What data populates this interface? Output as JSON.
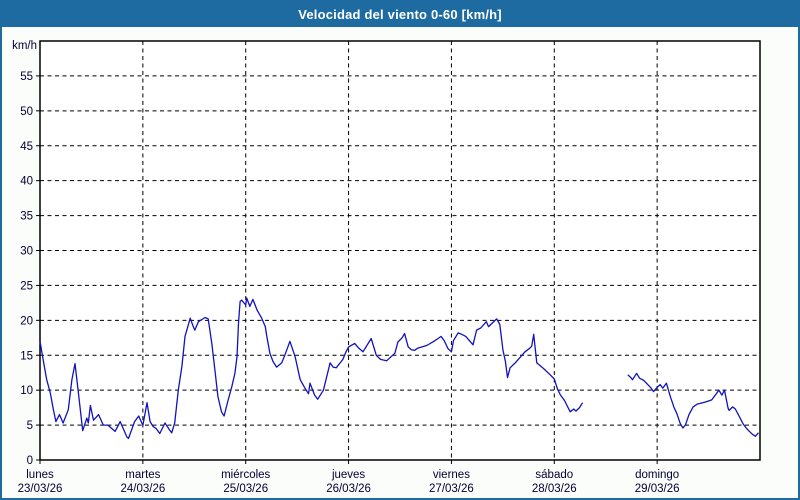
{
  "window": {
    "title": "Velocidad del viento 0-60 [km/h]"
  },
  "colors": {
    "titlebar_bg": "#1E6BA1",
    "frame_border": "#1E6BA1",
    "page_bg": "#FBFDFA",
    "plot_bg": "#FFFFFF",
    "plot_border": "#000000",
    "grid": "#000000",
    "line": "#1212BE",
    "axis_text": "#000033",
    "title_text": "#FFFFFF"
  },
  "chart_data": {
    "type": "line",
    "title": "Velocidad del viento 0-60 [km/h]",
    "ylabel": "km/h",
    "ylim": [
      0,
      60
    ],
    "ytick_step": 5,
    "ymax_labeled": 55,
    "grid": "dashed",
    "legend_position": "none",
    "x_axis": {
      "unit": "days",
      "range_days": 7,
      "days": [
        {
          "weekday": "lunes",
          "date": "23/03/26"
        },
        {
          "weekday": "martes",
          "date": "24/03/26"
        },
        {
          "weekday": "miércoles",
          "date": "25/03/26"
        },
        {
          "weekday": "jueves",
          "date": "26/03/26"
        },
        {
          "weekday": "viernes",
          "date": "27/03/26"
        },
        {
          "weekday": "sábado",
          "date": "28/03/26"
        },
        {
          "weekday": "domingo",
          "date": "29/03/26"
        }
      ]
    },
    "series": [
      {
        "name": "velocidad del viento",
        "color": "#1212BE",
        "segments": [
          [
            [
              0.0,
              17.0
            ],
            [
              0.03,
              14.4
            ],
            [
              0.065,
              11.5
            ],
            [
              0.1,
              9.6
            ],
            [
              0.13,
              7.2
            ],
            [
              0.155,
              5.5
            ],
            [
              0.19,
              6.5
            ],
            [
              0.225,
              5.3
            ],
            [
              0.275,
              7.2
            ],
            [
              0.31,
              11.5
            ],
            [
              0.34,
              13.8
            ],
            [
              0.37,
              10.0
            ],
            [
              0.415,
              4.2
            ],
            [
              0.455,
              6.0
            ],
            [
              0.47,
              5.3
            ],
            [
              0.49,
              7.8
            ],
            [
              0.52,
              5.7
            ],
            [
              0.57,
              6.5
            ],
            [
              0.615,
              5.0
            ],
            [
              0.66,
              5.0
            ],
            [
              0.715,
              4.3
            ],
            [
              0.73,
              4.1
            ],
            [
              0.78,
              5.5
            ],
            [
              0.845,
              3.3
            ],
            [
              0.86,
              3.1
            ],
            [
              0.92,
              5.5
            ],
            [
              0.96,
              6.3
            ],
            [
              0.99,
              5.3
            ],
            [
              1.0,
              5.0
            ],
            [
              1.04,
              8.2
            ],
            [
              1.07,
              5.5
            ],
            [
              1.1,
              4.8
            ],
            [
              1.13,
              4.5
            ],
            [
              1.165,
              3.8
            ],
            [
              1.215,
              5.3
            ],
            [
              1.26,
              4.3
            ],
            [
              1.28,
              3.9
            ],
            [
              1.31,
              5.3
            ],
            [
              1.345,
              10.0
            ],
            [
              1.38,
              13.4
            ],
            [
              1.41,
              17.7
            ],
            [
              1.46,
              20.3
            ],
            [
              1.49,
              19.1
            ],
            [
              1.505,
              18.6
            ],
            [
              1.54,
              19.8
            ],
            [
              1.605,
              20.4
            ],
            [
              1.635,
              20.2
            ],
            [
              1.67,
              16.7
            ],
            [
              1.7,
              12.9
            ],
            [
              1.73,
              9.1
            ],
            [
              1.765,
              6.9
            ],
            [
              1.79,
              6.3
            ],
            [
              1.83,
              8.6
            ],
            [
              1.865,
              10.5
            ],
            [
              1.895,
              12.4
            ],
            [
              1.915,
              14.8
            ],
            [
              1.93,
              19.6
            ],
            [
              1.945,
              22.7
            ],
            [
              1.96,
              22.9
            ],
            [
              2.0,
              22.2
            ],
            [
              2.01,
              23.2
            ],
            [
              2.04,
              22.0
            ],
            [
              2.07,
              23.0
            ],
            [
              2.11,
              21.5
            ],
            [
              2.155,
              20.3
            ],
            [
              2.19,
              19.1
            ],
            [
              2.205,
              17.7
            ],
            [
              2.235,
              15.3
            ],
            [
              2.265,
              14.1
            ],
            [
              2.3,
              13.3
            ],
            [
              2.35,
              13.9
            ],
            [
              2.38,
              15.0
            ],
            [
              2.43,
              17.0
            ],
            [
              2.48,
              14.8
            ],
            [
              2.53,
              11.5
            ],
            [
              2.575,
              10.3
            ],
            [
              2.61,
              9.5
            ],
            [
              2.625,
              11.0
            ],
            [
              2.67,
              9.3
            ],
            [
              2.7,
              8.7
            ],
            [
              2.755,
              10.0
            ],
            [
              2.82,
              13.9
            ],
            [
              2.85,
              13.3
            ],
            [
              2.88,
              13.2
            ],
            [
              2.945,
              14.4
            ],
            [
              2.975,
              15.5
            ],
            [
              3.0,
              16.2
            ],
            [
              3.06,
              16.7
            ],
            [
              3.1,
              16.0
            ],
            [
              3.14,
              15.5
            ],
            [
              3.22,
              17.4
            ],
            [
              3.27,
              15.0
            ],
            [
              3.31,
              14.4
            ],
            [
              3.37,
              14.2
            ],
            [
              3.45,
              15.3
            ],
            [
              3.48,
              16.9
            ],
            [
              3.52,
              17.5
            ],
            [
              3.545,
              18.1
            ],
            [
              3.58,
              16.2
            ],
            [
              3.61,
              15.8
            ],
            [
              3.64,
              15.7
            ],
            [
              3.67,
              16.0
            ],
            [
              3.76,
              16.4
            ],
            [
              3.83,
              17.0
            ],
            [
              3.87,
              17.4
            ],
            [
              3.9,
              17.7
            ],
            [
              3.93,
              17.1
            ],
            [
              3.965,
              16.0
            ],
            [
              4.0,
              15.5
            ],
            [
              4.02,
              17.1
            ],
            [
              4.065,
              18.2
            ],
            [
              4.1,
              18.0
            ],
            [
              4.14,
              17.7
            ],
            [
              4.21,
              16.5
            ],
            [
              4.245,
              18.6
            ],
            [
              4.285,
              18.9
            ],
            [
              4.34,
              19.8
            ],
            [
              4.36,
              19.1
            ],
            [
              4.44,
              20.2
            ],
            [
              4.47,
              19.4
            ],
            [
              4.5,
              15.8
            ],
            [
              4.525,
              14.1
            ],
            [
              4.545,
              11.8
            ],
            [
              4.57,
              13.2
            ],
            [
              4.62,
              13.9
            ],
            [
              4.715,
              15.5
            ],
            [
              4.76,
              16.0
            ],
            [
              4.78,
              16.3
            ],
            [
              4.8,
              18.0
            ],
            [
              4.83,
              13.9
            ],
            [
              4.895,
              13.1
            ],
            [
              4.96,
              12.2
            ],
            [
              5.0,
              11.6
            ],
            [
              5.03,
              10.2
            ],
            [
              5.06,
              9.3
            ],
            [
              5.1,
              8.5
            ],
            [
              5.13,
              7.6
            ],
            [
              5.155,
              6.9
            ],
            [
              5.19,
              7.3
            ],
            [
              5.21,
              7.0
            ],
            [
              5.245,
              7.5
            ],
            [
              5.275,
              8.2
            ]
          ],
          [
            [
              5.715,
              12.2
            ],
            [
              5.745,
              11.8
            ],
            [
              5.76,
              11.5
            ],
            [
              5.8,
              12.4
            ],
            [
              5.83,
              11.7
            ],
            [
              5.87,
              11.4
            ],
            [
              5.935,
              10.4
            ],
            [
              5.965,
              9.8
            ],
            [
              6.0,
              10.4
            ],
            [
              6.03,
              10.8
            ],
            [
              6.055,
              10.3
            ],
            [
              6.09,
              11.0
            ],
            [
              6.13,
              9.0
            ],
            [
              6.165,
              7.5
            ],
            [
              6.19,
              6.7
            ],
            [
              6.225,
              5.2
            ],
            [
              6.25,
              4.6
            ],
            [
              6.275,
              5.0
            ],
            [
              6.31,
              6.5
            ],
            [
              6.35,
              7.6
            ],
            [
              6.39,
              8.0
            ],
            [
              6.47,
              8.3
            ],
            [
              6.53,
              8.6
            ],
            [
              6.575,
              9.5
            ],
            [
              6.6,
              10.0
            ],
            [
              6.63,
              9.3
            ],
            [
              6.655,
              10.0
            ],
            [
              6.69,
              7.4
            ],
            [
              6.7,
              7.1
            ],
            [
              6.735,
              7.6
            ],
            [
              6.76,
              7.3
            ],
            [
              6.8,
              6.2
            ],
            [
              6.835,
              5.2
            ],
            [
              6.865,
              4.6
            ],
            [
              6.89,
              4.2
            ],
            [
              6.925,
              3.7
            ],
            [
              6.955,
              3.4
            ],
            [
              6.985,
              3.9
            ]
          ]
        ]
      }
    ]
  }
}
